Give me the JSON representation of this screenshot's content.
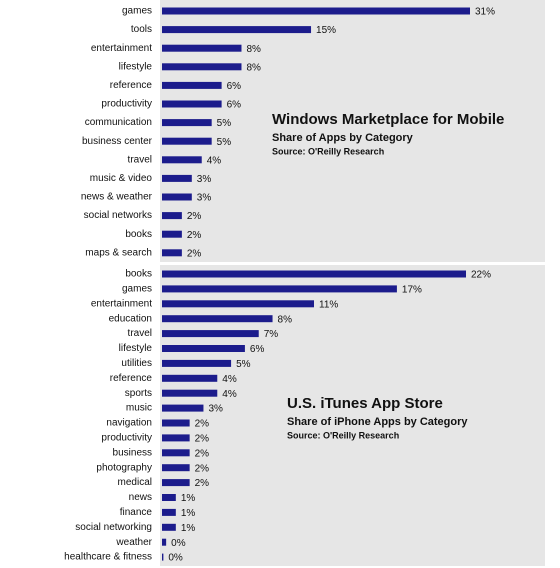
{
  "chart_data": [
    {
      "type": "bar",
      "orientation": "horizontal",
      "title": "Windows Marketplace for Mobile",
      "subtitle": "Share of Apps by Category",
      "source": "Source: O'Reilly Research",
      "categories": [
        "games",
        "tools",
        "entertainment",
        "lifestyle",
        "reference",
        "productivity",
        "communication",
        "business center",
        "travel",
        "music & video",
        "news & weather",
        "social networks",
        "books",
        "maps & search"
      ],
      "values": [
        31,
        15,
        8,
        8,
        6,
        6,
        5,
        5,
        4,
        3,
        3,
        2,
        2,
        2
      ],
      "value_labels": [
        "31%",
        "15%",
        "8%",
        "8%",
        "6%",
        "6%",
        "5%",
        "5%",
        "4%",
        "3%",
        "3%",
        "2%",
        "2%",
        "2%"
      ],
      "color": "#1c1c8c",
      "background": "#e6e6e6"
    },
    {
      "type": "bar",
      "orientation": "horizontal",
      "title": "U.S. iTunes App Store",
      "subtitle": "Share of iPhone Apps by Category",
      "source": "Source: O'Reilly Research",
      "categories": [
        "books",
        "games",
        "entertainment",
        "education",
        "travel",
        "lifestyle",
        "utilities",
        "reference",
        "sports",
        "music",
        "navigation",
        "productivity",
        "business",
        "photography",
        "medical",
        "news",
        "finance",
        "social networking",
        "weather",
        "healthcare & fitness"
      ],
      "values": [
        22,
        17,
        11,
        8,
        7,
        6,
        5,
        4,
        4,
        3,
        2,
        2,
        2,
        2,
        2,
        1,
        1,
        1,
        0.3,
        0.1
      ],
      "value_labels": [
        "22%",
        "17%",
        "11%",
        "8%",
        "7%",
        "6%",
        "5%",
        "4%",
        "4%",
        "3%",
        "2%",
        "2%",
        "2%",
        "2%",
        "2%",
        "1%",
        "1%",
        "1%",
        "0%",
        "0%"
      ],
      "color": "#1c1c8c",
      "background": "#e6e6e6"
    }
  ]
}
